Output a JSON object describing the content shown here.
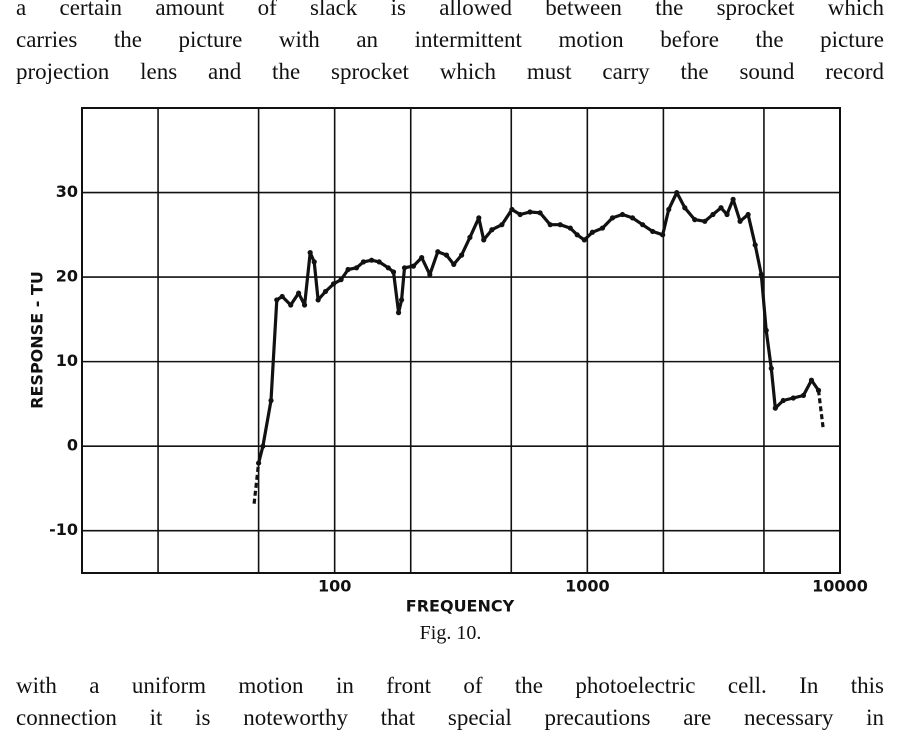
{
  "text_above": [
    "a certain amount of slack is allowed between the sprocket which",
    "carries the picture with an intermittent motion before the picture",
    "projection lens and the sprocket which must carry the sound record"
  ],
  "chart_data": {
    "type": "line",
    "xlabel": "FREQUENCY",
    "ylabel": "RESPONSE - TU",
    "xscale": "log",
    "xlim": [
      10,
      10000
    ],
    "ylim": [
      -15,
      40
    ],
    "xticks": [
      100,
      1000,
      10000
    ],
    "xgrid": [
      20,
      50,
      200,
      500,
      2000,
      5000
    ],
    "yticks": [
      -10,
      0,
      10,
      20,
      30
    ],
    "grid": true,
    "color": "#111",
    "series": [
      {
        "dashed": true,
        "x": [
          48,
          50
        ],
        "values": [
          -6.8,
          -2
        ]
      },
      {
        "dashed": false,
        "x": [
          50,
          52,
          56,
          59,
          62,
          67,
          72,
          76,
          80,
          83,
          86,
          92,
          99,
          106,
          113,
          122,
          130,
          140,
          150,
          163,
          171,
          179,
          184,
          189,
          205,
          221,
          238,
          256,
          277,
          296,
          318,
          343,
          372,
          389,
          419,
          459,
          503,
          542,
          593,
          650,
          713,
          781,
          856,
          912,
          973,
          1047,
          1148,
          1257,
          1377,
          1510,
          1655,
          1813,
          1987,
          2100,
          2259,
          2431,
          2661,
          2917,
          3141,
          3381,
          3572,
          3775,
          4022,
          4329,
          4616,
          4879,
          5105,
          5346,
          5546,
          5962,
          6535,
          7165,
          7711,
          8222
        ],
        "values": [
          -2,
          0,
          5.4,
          17.3,
          17.7,
          16.7,
          18.1,
          16.7,
          22.9,
          21.8,
          17.3,
          18.3,
          19.2,
          19.7,
          20.9,
          21.1,
          21.8,
          22,
          21.8,
          21.1,
          20.6,
          15.8,
          17.3,
          21.1,
          21.3,
          22.3,
          20.3,
          23,
          22.6,
          21.5,
          22.6,
          24.7,
          27,
          24.4,
          25.6,
          26.2,
          28,
          27.4,
          27.7,
          27.6,
          26.2,
          26.2,
          25.8,
          25,
          24.4,
          25.3,
          25.8,
          27,
          27.4,
          27,
          26.2,
          25.4,
          25,
          28,
          30,
          28.2,
          26.8,
          26.6,
          27.4,
          28.2,
          27.4,
          29.2,
          26.6,
          27.4,
          23.8,
          20.3,
          13.7,
          9.2,
          4.5,
          5.4,
          5.7,
          6,
          7.8,
          6.6
        ]
      },
      {
        "dashed": true,
        "x": [
          8222,
          8597
        ],
        "values": [
          6.6,
          1.9
        ]
      }
    ]
  },
  "caption": "Fig. 10.",
  "text_below": [
    "with a uniform motion in front of the photoelectric cell.  In this",
    "connection it is noteworthy that special precautions are necessary in"
  ]
}
